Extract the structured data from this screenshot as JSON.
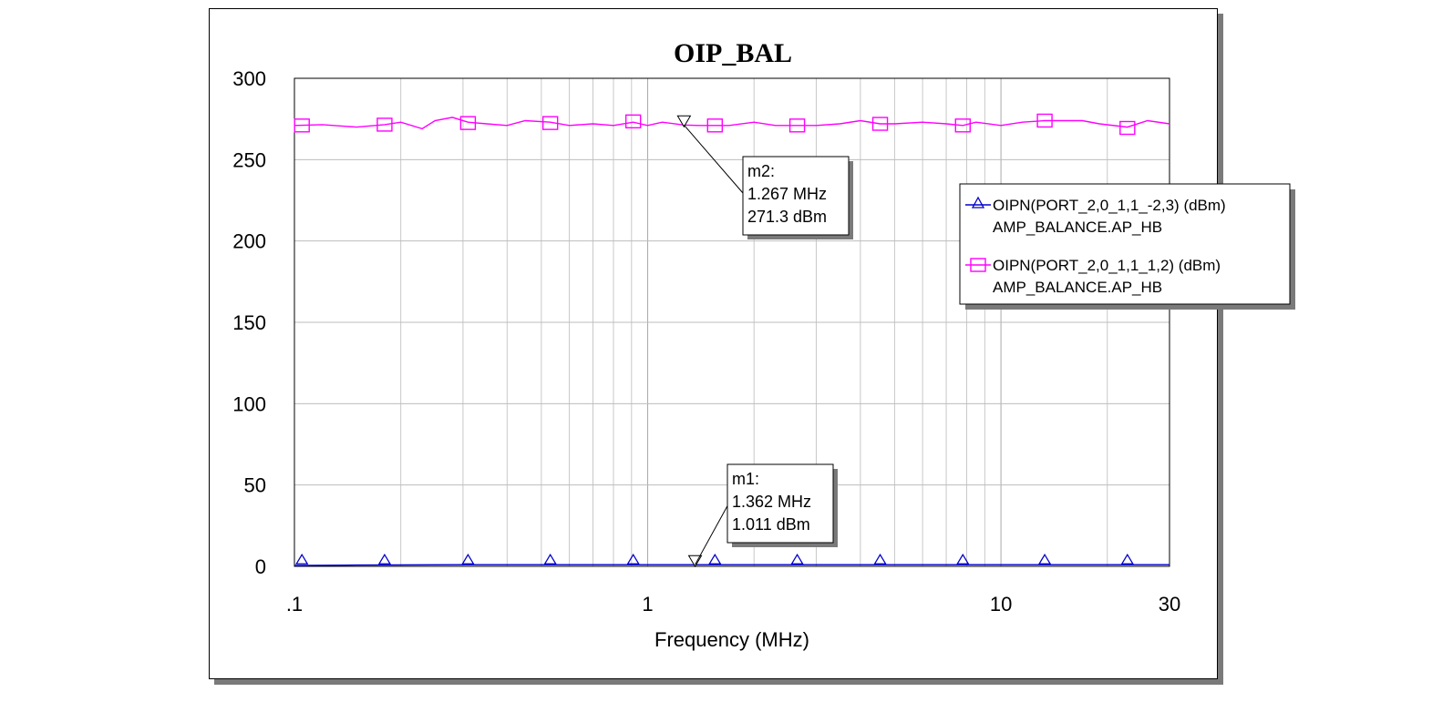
{
  "chart_data": {
    "type": "line",
    "title": "OIP_BAL",
    "xlabel": "Frequency (MHz)",
    "ylabel": "",
    "x_scale": "log",
    "xlim": [
      0.1,
      30
    ],
    "ylim": [
      0,
      300
    ],
    "x_ticks": [
      {
        "value": 0.1,
        "label": ".1"
      },
      {
        "value": 1,
        "label": "1"
      },
      {
        "value": 10,
        "label": "10"
      },
      {
        "value": 30,
        "label": "30"
      }
    ],
    "y_ticks": [
      {
        "value": 0,
        "label": "0"
      },
      {
        "value": 50,
        "label": "50"
      },
      {
        "value": 100,
        "label": "100"
      },
      {
        "value": 150,
        "label": "150"
      },
      {
        "value": 200,
        "label": "200"
      },
      {
        "value": 250,
        "label": "250"
      },
      {
        "value": 300,
        "label": "300"
      }
    ],
    "grid": true,
    "legend_position": "right",
    "series": [
      {
        "name": "OIPN(PORT_2,0_1,1_-2,3) (dBm)",
        "name_line2": "AMP_BALANCE.AP_HB",
        "color": "#0000cc",
        "marker": "triangle",
        "x": [
          0.1,
          0.15,
          0.2,
          0.3,
          0.5,
          0.7,
          1.0,
          1.362,
          2,
          3,
          5,
          7,
          10,
          15,
          20,
          30
        ],
        "y": [
          0.5,
          0.8,
          0.9,
          1.0,
          1.0,
          1.0,
          1.0,
          1.011,
          1.0,
          1.0,
          1.0,
          1.0,
          1.0,
          1.0,
          1.0,
          1.0
        ],
        "marker_x": [
          0.105,
          0.18,
          0.31,
          0.53,
          0.91,
          1.55,
          2.65,
          4.55,
          7.8,
          13.3,
          22.8
        ]
      },
      {
        "name": "OIPN(PORT_2,0_1,1_1,2) (dBm)",
        "name_line2": "AMP_BALANCE.AP_HB",
        "color": "#ff00ff",
        "marker": "square",
        "x": [
          0.1,
          0.12,
          0.15,
          0.18,
          0.2,
          0.23,
          0.25,
          0.28,
          0.31,
          0.35,
          0.4,
          0.45,
          0.53,
          0.6,
          0.7,
          0.8,
          0.91,
          1.0,
          1.1,
          1.267,
          1.4,
          1.55,
          1.7,
          2.0,
          2.3,
          2.65,
          3.0,
          3.5,
          4.0,
          4.55,
          5.0,
          6.0,
          7.0,
          7.8,
          8.5,
          10,
          11.5,
          13.3,
          15,
          17,
          19,
          22.8,
          26,
          30
        ],
        "y": [
          271,
          271.5,
          270,
          271.5,
          273,
          269,
          274,
          276,
          273,
          272,
          271,
          274,
          273,
          271,
          272,
          271,
          273,
          271,
          273,
          271.3,
          271,
          271,
          271,
          273,
          271,
          271,
          271,
          272,
          274,
          272,
          272,
          273,
          272,
          271,
          273,
          271,
          273,
          274,
          274,
          274,
          272,
          270,
          274,
          272
        ],
        "marker_x": [
          0.105,
          0.18,
          0.31,
          0.53,
          0.91,
          1.55,
          2.65,
          4.55,
          7.8,
          13.3,
          22.8
        ],
        "marker_y": [
          271,
          271.5,
          272.5,
          272.5,
          273.5,
          271,
          271,
          272,
          271,
          274,
          269.5
        ]
      }
    ],
    "markers": [
      {
        "id": "m1",
        "label": "m1:",
        "freq_text": "1.362 MHz",
        "value_text": "1.011 dBm",
        "x": 1.362,
        "y": 1.011
      },
      {
        "id": "m2",
        "label": "m2:",
        "freq_text": "1.267 MHz",
        "value_text": "271.3 dBm",
        "x": 1.267,
        "y": 271.3
      }
    ]
  }
}
